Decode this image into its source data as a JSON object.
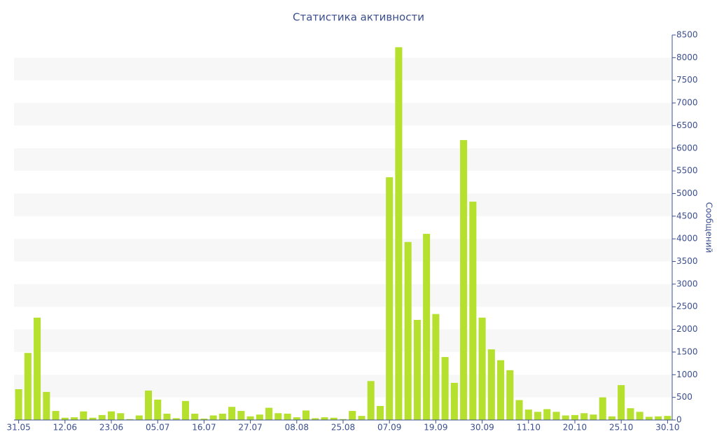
{
  "chart_data": {
    "type": "bar",
    "title": "Статистика активности",
    "y_label": "Сообщений",
    "categories": [
      "31.05",
      null,
      null,
      null,
      null,
      "12.06",
      null,
      null,
      null,
      null,
      "23.06",
      null,
      null,
      null,
      null,
      "05.07",
      null,
      null,
      null,
      null,
      "16.07",
      null,
      null,
      null,
      null,
      "27.07",
      null,
      null,
      null,
      null,
      "08.08",
      null,
      null,
      null,
      null,
      "25.08",
      null,
      null,
      null,
      null,
      "07.09",
      null,
      null,
      null,
      null,
      "19.09",
      null,
      null,
      null,
      null,
      "30.09",
      null,
      null,
      null,
      null,
      "11.10",
      null,
      null,
      null,
      null,
      "20.10",
      null,
      null,
      null,
      null,
      "25.10",
      null,
      null,
      null,
      null,
      "30.10"
    ],
    "values": [
      680,
      1480,
      2260,
      620,
      200,
      50,
      60,
      190,
      50,
      110,
      190,
      150,
      20,
      100,
      650,
      450,
      140,
      40,
      420,
      140,
      30,
      100,
      140,
      290,
      200,
      80,
      120,
      270,
      150,
      140,
      60,
      210,
      40,
      60,
      50,
      20,
      200,
      90,
      860,
      310,
      5360,
      8230,
      3930,
      2210,
      4110,
      2340,
      1390,
      820,
      6180,
      4820,
      2260,
      1560,
      1320,
      1100,
      440,
      230,
      180,
      240,
      180,
      100,
      110,
      150,
      120,
      500,
      80,
      770,
      260,
      180,
      70,
      80,
      90
    ],
    "color": "#b5e02e",
    "band_color": "#f7f7f7",
    "ylim": [
      0,
      8500
    ],
    "yticks": [
      0,
      500,
      1000,
      1500,
      2000,
      2500,
      3000,
      3500,
      4000,
      4500,
      5000,
      5500,
      6000,
      6500,
      7000,
      7500,
      8000,
      8500
    ]
  }
}
